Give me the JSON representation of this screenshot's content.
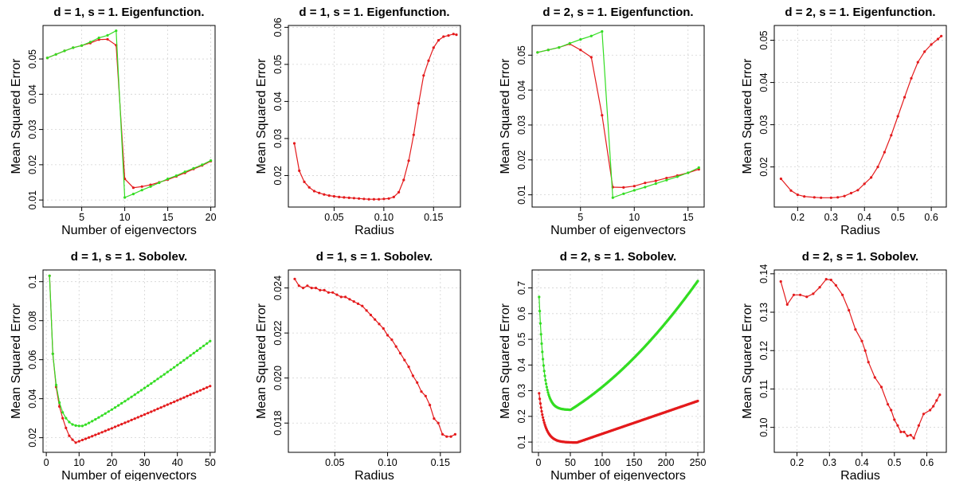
{
  "colors": {
    "red": "#e41a1c",
    "green": "#33dd22"
  },
  "chart_data": [
    {
      "type": "line",
      "title": "d = 1, s = 1. Eigenfunction.",
      "xlabel": "Number of eigenvectors",
      "ylabel": "Mean Squared Error",
      "xlim": [
        0.5,
        20.5
      ],
      "ylim": [
        0.008,
        0.0595
      ],
      "xticks": [
        5,
        10,
        15,
        20
      ],
      "yticks": [
        0.01,
        0.02,
        0.03,
        0.04,
        0.05
      ],
      "series": [
        {
          "color": "red",
          "points": [
            [
              1,
              0.0503
            ],
            [
              2,
              0.0513
            ],
            [
              3,
              0.0523
            ],
            [
              4,
              0.0532
            ],
            [
              5,
              0.0538
            ],
            [
              6,
              0.0545
            ],
            [
              7,
              0.0555
            ],
            [
              8,
              0.0556
            ],
            [
              9,
              0.0539
            ],
            [
              10,
              0.016
            ],
            [
              11,
              0.0135
            ],
            [
              12,
              0.0138
            ],
            [
              13,
              0.0143
            ],
            [
              14,
              0.015
            ],
            [
              15,
              0.0158
            ],
            [
              16,
              0.0167
            ],
            [
              17,
              0.0177
            ],
            [
              18,
              0.0188
            ],
            [
              19,
              0.0198
            ],
            [
              20,
              0.021
            ]
          ]
        },
        {
          "color": "green",
          "points": [
            [
              1,
              0.0503
            ],
            [
              2,
              0.0513
            ],
            [
              3,
              0.0523
            ],
            [
              4,
              0.0532
            ],
            [
              5,
              0.0538
            ],
            [
              6,
              0.0548
            ],
            [
              7,
              0.056
            ],
            [
              8,
              0.0567
            ],
            [
              9,
              0.058
            ],
            [
              10,
              0.0107
            ],
            [
              11,
              0.0117
            ],
            [
              12,
              0.0128
            ],
            [
              13,
              0.0138
            ],
            [
              14,
              0.0149
            ],
            [
              15,
              0.016
            ],
            [
              16,
              0.0169
            ],
            [
              17,
              0.018
            ],
            [
              18,
              0.019
            ],
            [
              19,
              0.02
            ],
            [
              20,
              0.0212
            ]
          ]
        }
      ]
    },
    {
      "type": "line",
      "title": "d = 1, s = 1. Eigenfunction.",
      "xlabel": "Radius",
      "ylabel": "Mean Squared Error",
      "xlim": [
        0.004,
        0.177
      ],
      "ylim": [
        0.0115,
        0.0605
      ],
      "xticks": [
        0.05,
        0.1,
        0.15
      ],
      "xtick_labels": [
        "0.05",
        "0.10",
        "0.15"
      ],
      "yticks": [
        0.02,
        0.03,
        0.04,
        0.05,
        0.06
      ],
      "series": [
        {
          "color": "red",
          "points": [
            [
              0.01,
              0.0287
            ],
            [
              0.015,
              0.0213
            ],
            [
              0.02,
              0.0183
            ],
            [
              0.025,
              0.0168
            ],
            [
              0.03,
              0.0158
            ],
            [
              0.035,
              0.0153
            ],
            [
              0.04,
              0.0149
            ],
            [
              0.045,
              0.0146
            ],
            [
              0.05,
              0.0144
            ],
            [
              0.055,
              0.0142
            ],
            [
              0.06,
              0.0141
            ],
            [
              0.065,
              0.014
            ],
            [
              0.07,
              0.0139
            ],
            [
              0.075,
              0.0138
            ],
            [
              0.08,
              0.0137
            ],
            [
              0.085,
              0.0136
            ],
            [
              0.09,
              0.0136
            ],
            [
              0.095,
              0.0136
            ],
            [
              0.1,
              0.0137
            ],
            [
              0.105,
              0.0138
            ],
            [
              0.11,
              0.0142
            ],
            [
              0.115,
              0.0155
            ],
            [
              0.12,
              0.0188
            ],
            [
              0.125,
              0.024
            ],
            [
              0.13,
              0.031
            ],
            [
              0.135,
              0.0395
            ],
            [
              0.14,
              0.047
            ],
            [
              0.145,
              0.051
            ],
            [
              0.15,
              0.0545
            ],
            [
              0.155,
              0.0565
            ],
            [
              0.16,
              0.0575
            ],
            [
              0.165,
              0.0578
            ],
            [
              0.17,
              0.0582
            ],
            [
              0.173,
              0.058
            ]
          ]
        }
      ]
    },
    {
      "type": "line",
      "title": "d = 2, s = 1. Eigenfunction.",
      "xlabel": "Number of eigenvectors",
      "ylabel": "Mean Squared Error",
      "xlim": [
        0.5,
        16.5
      ],
      "ylim": [
        0.0065,
        0.0585
      ],
      "xticks": [
        5,
        10,
        15
      ],
      "yticks": [
        0.01,
        0.02,
        0.03,
        0.04,
        0.05
      ],
      "series": [
        {
          "color": "red",
          "points": [
            [
              1,
              0.0508
            ],
            [
              2,
              0.0515
            ],
            [
              3,
              0.0522
            ],
            [
              4,
              0.0532
            ],
            [
              5,
              0.0515
            ],
            [
              6,
              0.0494
            ],
            [
              7,
              0.0328
            ],
            [
              8,
              0.0122
            ],
            [
              9,
              0.0121
            ],
            [
              10,
              0.0125
            ],
            [
              11,
              0.0134
            ],
            [
              12,
              0.014
            ],
            [
              13,
              0.0148
            ],
            [
              14,
              0.0155
            ],
            [
              15,
              0.0163
            ],
            [
              16,
              0.0173
            ]
          ]
        },
        {
          "color": "green",
          "points": [
            [
              1,
              0.0508
            ],
            [
              2,
              0.0515
            ],
            [
              3,
              0.0522
            ],
            [
              4,
              0.0534
            ],
            [
              5,
              0.0545
            ],
            [
              6,
              0.0555
            ],
            [
              7,
              0.0568
            ],
            [
              8,
              0.0092
            ],
            [
              9,
              0.0103
            ],
            [
              10,
              0.0113
            ],
            [
              11,
              0.0122
            ],
            [
              12,
              0.0132
            ],
            [
              13,
              0.0142
            ],
            [
              14,
              0.0152
            ],
            [
              15,
              0.0163
            ],
            [
              16,
              0.0178
            ]
          ]
        }
      ]
    },
    {
      "type": "line",
      "title": "d = 2, s = 1. Eigenfunction.",
      "xlabel": "Radius",
      "ylabel": "Mean Squared Error",
      "xlim": [
        0.13,
        0.645
      ],
      "ylim": [
        0.0105,
        0.0535
      ],
      "xticks": [
        0.2,
        0.3,
        0.4,
        0.5,
        0.6
      ],
      "yticks": [
        0.02,
        0.03,
        0.04,
        0.05
      ],
      "series": [
        {
          "color": "red",
          "points": [
            [
              0.15,
              0.0172
            ],
            [
              0.18,
              0.0144
            ],
            [
              0.2,
              0.0134
            ],
            [
              0.22,
              0.013
            ],
            [
              0.25,
              0.0128
            ],
            [
              0.27,
              0.0127
            ],
            [
              0.3,
              0.0127
            ],
            [
              0.32,
              0.0128
            ],
            [
              0.34,
              0.0131
            ],
            [
              0.36,
              0.0138
            ],
            [
              0.38,
              0.0145
            ],
            [
              0.4,
              0.016
            ],
            [
              0.42,
              0.0175
            ],
            [
              0.44,
              0.02
            ],
            [
              0.46,
              0.0235
            ],
            [
              0.48,
              0.0275
            ],
            [
              0.5,
              0.032
            ],
            [
              0.52,
              0.0365
            ],
            [
              0.54,
              0.041
            ],
            [
              0.56,
              0.0448
            ],
            [
              0.58,
              0.0473
            ],
            [
              0.6,
              0.049
            ],
            [
              0.62,
              0.0503
            ],
            [
              0.63,
              0.051
            ]
          ]
        }
      ]
    },
    {
      "type": "line",
      "title": "d = 1, s = 1. Sobolev.",
      "xlabel": "Number of eigenvectors",
      "ylabel": "Mean Squared Error",
      "xlim": [
        -1,
        51.5
      ],
      "ylim": [
        0.0125,
        0.106
      ],
      "xticks": [
        0,
        10,
        20,
        30,
        40,
        50
      ],
      "yticks": [
        0.02,
        0.04,
        0.06,
        0.08,
        0.1
      ],
      "series": [
        {
          "color": "red",
          "gen": "sobolev1red"
        },
        {
          "color": "green",
          "gen": "sobolev1green"
        }
      ]
    },
    {
      "type": "line",
      "title": "d = 1, s = 1. Sobolev.",
      "xlabel": "Radius",
      "ylabel": "Mean Squared Error",
      "xlim": [
        0.006,
        0.169
      ],
      "ylim": [
        0.0167,
        0.0248
      ],
      "xticks": [
        0.05,
        0.1,
        0.15
      ],
      "xtick_labels": [
        "0.05",
        "0.10",
        "0.15"
      ],
      "yticks": [
        0.018,
        0.02,
        0.022,
        0.024
      ],
      "ytick_labels": [
        "0.018",
        "0.020",
        "0.022",
        "0.024"
      ],
      "series": [
        {
          "color": "red",
          "points": [
            [
              0.012,
              0.0244
            ],
            [
              0.016,
              0.0241
            ],
            [
              0.02,
              0.024
            ],
            [
              0.024,
              0.0241
            ],
            [
              0.028,
              0.024
            ],
            [
              0.032,
              0.024
            ],
            [
              0.036,
              0.0239
            ],
            [
              0.04,
              0.0239
            ],
            [
              0.044,
              0.0238
            ],
            [
              0.048,
              0.0238
            ],
            [
              0.052,
              0.0237
            ],
            [
              0.056,
              0.0236
            ],
            [
              0.06,
              0.0236
            ],
            [
              0.064,
              0.0235
            ],
            [
              0.068,
              0.0234
            ],
            [
              0.072,
              0.0233
            ],
            [
              0.076,
              0.0232
            ],
            [
              0.08,
              0.023
            ],
            [
              0.084,
              0.0228
            ],
            [
              0.088,
              0.0226
            ],
            [
              0.092,
              0.0224
            ],
            [
              0.096,
              0.0222
            ],
            [
              0.1,
              0.0219
            ],
            [
              0.104,
              0.0217
            ],
            [
              0.108,
              0.0214
            ],
            [
              0.112,
              0.0211
            ],
            [
              0.116,
              0.0208
            ],
            [
              0.12,
              0.0205
            ],
            [
              0.124,
              0.0201
            ],
            [
              0.128,
              0.0198
            ],
            [
              0.132,
              0.0194
            ],
            [
              0.136,
              0.0192
            ],
            [
              0.14,
              0.0188
            ],
            [
              0.144,
              0.0182
            ],
            [
              0.148,
              0.018
            ],
            [
              0.152,
              0.0175
            ],
            [
              0.156,
              0.0174
            ],
            [
              0.16,
              0.0174
            ],
            [
              0.164,
              0.0175
            ]
          ]
        }
      ]
    },
    {
      "type": "line",
      "title": "d = 2, s = 1. Sobolev.",
      "xlabel": "Number of eigenvectors",
      "ylabel": "Mean Squared Error",
      "xlim": [
        -10,
        260
      ],
      "ylim": [
        0.06,
        0.77
      ],
      "xticks": [
        0,
        50,
        100,
        150,
        200,
        250
      ],
      "yticks": [
        0.1,
        0.2,
        0.3,
        0.4,
        0.5,
        0.6,
        0.7
      ],
      "series": [
        {
          "color": "red",
          "gen": "sobolev2red"
        },
        {
          "color": "green",
          "gen": "sobolev2green"
        }
      ]
    },
    {
      "type": "line",
      "title": "d = 2, s = 1. Sobolev.",
      "xlabel": "Radius",
      "ylabel": "Mean Squared Error",
      "xlim": [
        0.13,
        0.66
      ],
      "ylim": [
        0.0935,
        0.141
      ],
      "xticks": [
        0.2,
        0.3,
        0.4,
        0.5,
        0.6
      ],
      "yticks": [
        0.1,
        0.11,
        0.12,
        0.13,
        0.14
      ],
      "ytick_labels": [
        "0.10",
        "0.11",
        "0.12",
        "0.13",
        "0.14"
      ],
      "series": [
        {
          "color": "red",
          "points": [
            [
              0.15,
              0.138
            ],
            [
              0.17,
              0.132
            ],
            [
              0.19,
              0.1345
            ],
            [
              0.21,
              0.1345
            ],
            [
              0.23,
              0.134
            ],
            [
              0.25,
              0.1348
            ],
            [
              0.27,
              0.1365
            ],
            [
              0.29,
              0.1386
            ],
            [
              0.305,
              0.1384
            ],
            [
              0.32,
              0.137
            ],
            [
              0.34,
              0.1345
            ],
            [
              0.36,
              0.1305
            ],
            [
              0.38,
              0.1255
            ],
            [
              0.4,
              0.1225
            ],
            [
              0.41,
              0.12
            ],
            [
              0.42,
              0.117
            ],
            [
              0.44,
              0.113
            ],
            [
              0.46,
              0.1105
            ],
            [
              0.48,
              0.106
            ],
            [
              0.49,
              0.1045
            ],
            [
              0.5,
              0.102
            ],
            [
              0.51,
              0.1005
            ],
            [
              0.52,
              0.0988
            ],
            [
              0.53,
              0.0988
            ],
            [
              0.54,
              0.0978
            ],
            [
              0.55,
              0.098
            ],
            [
              0.56,
              0.0972
            ],
            [
              0.575,
              0.1005
            ],
            [
              0.59,
              0.1035
            ],
            [
              0.61,
              0.1045
            ],
            [
              0.62,
              0.1055
            ],
            [
              0.63,
              0.107
            ],
            [
              0.64,
              0.1085
            ]
          ]
        }
      ]
    }
  ]
}
